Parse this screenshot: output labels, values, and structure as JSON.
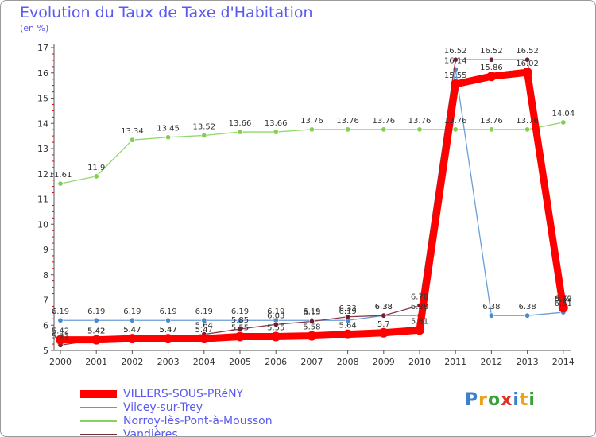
{
  "title": "Evolution du Taux de Taxe d'Habitation",
  "subtitle": "(en %)",
  "brand": {
    "letters": [
      {
        "char": "P",
        "color": "#3a7fd0"
      },
      {
        "char": "r",
        "color": "#e8a21c"
      },
      {
        "char": "o",
        "color": "#3aa03a"
      },
      {
        "char": "x",
        "color": "#e03020"
      },
      {
        "char": "i",
        "color": "#3a7fd0"
      },
      {
        "char": "t",
        "color": "#e8a21c"
      },
      {
        "char": "i",
        "color": "#3aa03a"
      }
    ]
  },
  "chart_data": {
    "type": "line",
    "x": [
      "2000",
      "2001",
      "2002",
      "2003",
      "2004",
      "2005",
      "2006",
      "2007",
      "2008",
      "2009",
      "2010",
      "2011",
      "2012",
      "2013",
      "2014"
    ],
    "ylim": [
      5,
      17
    ],
    "yticks": [
      5,
      6,
      7,
      8,
      9,
      10,
      11,
      12,
      13,
      14,
      15,
      16,
      17
    ],
    "grid": false,
    "legend_position": "bottom-left",
    "series": [
      {
        "name": "VILLERS-SOUS-PRéNY",
        "color": "#ff0000",
        "values": [
          5.42,
          5.42,
          5.47,
          5.47,
          5.47,
          5.55,
          5.55,
          5.58,
          5.64,
          5.7,
          5.81,
          15.55,
          15.86,
          16.02,
          6.69
        ],
        "labels": [
          "5.42",
          "5.42",
          "5.47",
          "5.47",
          "5.47",
          "5.55",
          "5.55",
          "5.58",
          "5.64",
          "5.7",
          "5.81",
          "15.55",
          "15.86",
          "16.02",
          "6.69"
        ]
      },
      {
        "name": "Vilcey-sur-Trey",
        "color": "#5b9bd5",
        "values": [
          6.19,
          6.19,
          6.19,
          6.19,
          6.19,
          6.19,
          6.19,
          6.19,
          6.19,
          6.38,
          6.38,
          16.14,
          6.38,
          6.38,
          6.51
        ],
        "labels": [
          "6.19",
          "6.19",
          "6.19",
          "6.19",
          "6.19",
          "6.19",
          "6.19",
          "6.19",
          "6.19",
          "6.38",
          "6.38",
          "16.14",
          "6.38",
          "6.38",
          "6.51"
        ]
      },
      {
        "name": "Norroy-lès-Pont-à-Mousson",
        "color": "#8ad060",
        "values": [
          11.61,
          11.9,
          13.34,
          13.45,
          13.52,
          13.66,
          13.66,
          13.76,
          13.76,
          13.76,
          13.76,
          13.76,
          13.76,
          13.76,
          14.04
        ],
        "labels": [
          "11.61",
          "11.9",
          "13.34",
          "13.45",
          "13.52",
          "13.66",
          "13.66",
          "13.76",
          "13.76",
          "13.76",
          "13.76",
          "13.76",
          "13.76",
          "13.76",
          "14.04"
        ]
      },
      {
        "name": "Vandières",
        "color": "#7a2a3a",
        "values": [
          5.21,
          5.42,
          5.47,
          5.47,
          5.64,
          5.85,
          6.03,
          6.15,
          6.33,
          6.38,
          6.78,
          16.52,
          16.52,
          16.52,
          6.72
        ],
        "labels": [
          "5.21",
          "5.42",
          "5.47",
          "5.47",
          "5.64",
          "5.85",
          "6.03",
          "6.15",
          "6.33",
          "6.38",
          "6.78",
          "16.52",
          "16.52",
          "16.52",
          "6.72"
        ]
      }
    ]
  }
}
